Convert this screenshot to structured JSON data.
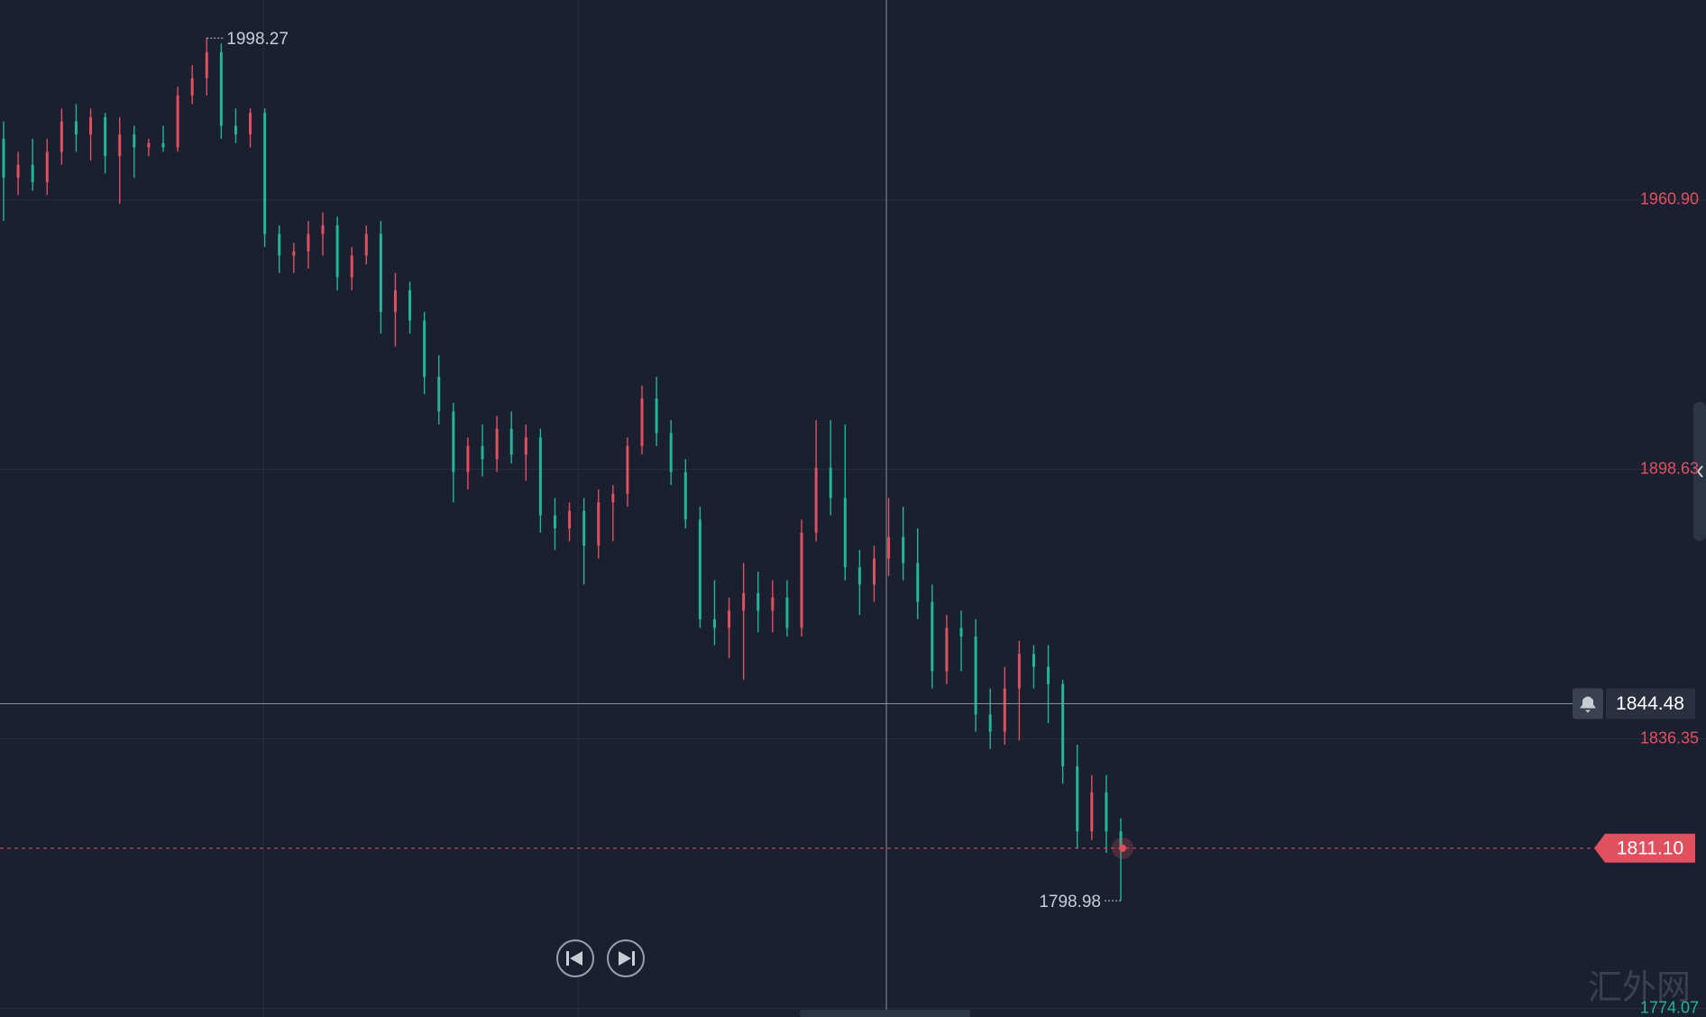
{
  "chart_data": {
    "type": "candlestick",
    "up_color": "#e0505f",
    "down_color": "#22b59a",
    "grid": true,
    "ylim": [
      1772.1,
      2007.06
    ],
    "yticks": [
      {
        "value": 1960.9,
        "label": "1960.90"
      },
      {
        "value": 1898.63,
        "label": "1898.63"
      },
      {
        "value": 1836.35,
        "label": "1836.35"
      },
      {
        "value": 1774.07,
        "label": "1774.07"
      }
    ],
    "open": [
      1975,
      1966,
      1969,
      1965,
      1972,
      1979,
      1976,
      1980,
      1971,
      1976,
      1973,
      1974,
      1973,
      1985,
      1989,
      1995,
      1978,
      1976,
      1981,
      1953,
      1948,
      1949,
      1953,
      1955,
      1943,
      1948,
      1953,
      1935,
      1940,
      1933,
      1920,
      1912,
      1898,
      1904,
      1901,
      1908,
      1902,
      1906,
      1888,
      1885,
      1889,
      1881,
      1891,
      1893,
      1904,
      1915,
      1907,
      1898,
      1887,
      1864,
      1862,
      1866,
      1870,
      1866,
      1869,
      1862,
      1884,
      1899,
      1892,
      1876,
      1872,
      1878,
      1883,
      1877,
      1868,
      1852,
      1862,
      1860,
      1842,
      1838,
      1848,
      1856,
      1853,
      1849,
      1830,
      1815,
      1824,
      1815
    ],
    "high": [
      1979,
      1972,
      1975,
      1975,
      1982,
      1983,
      1982,
      1981,
      1980,
      1978,
      1975,
      1978,
      1987,
      1992,
      1998.27,
      1997,
      1982,
      1982,
      1982,
      1955,
      1951,
      1956,
      1958,
      1957,
      1950,
      1955,
      1956,
      1944,
      1942,
      1935,
      1925,
      1914,
      1906,
      1909,
      1911,
      1912,
      1909,
      1908,
      1892,
      1891,
      1892,
      1894,
      1895,
      1906,
      1918,
      1920,
      1910,
      1901,
      1890,
      1873,
      1869,
      1877,
      1875,
      1873,
      1873,
      1887,
      1910,
      1910,
      1909,
      1880,
      1881,
      1892,
      1890,
      1885,
      1872,
      1865,
      1866,
      1864,
      1848,
      1853,
      1859,
      1858,
      1858,
      1850,
      1835,
      1828,
      1828,
      1818
    ],
    "low": [
      1956,
      1962,
      1963,
      1962,
      1969,
      1972,
      1970,
      1967,
      1960,
      1966,
      1971,
      1972,
      1972,
      1983,
      1985,
      1975,
      1974,
      1973,
      1950,
      1944,
      1944,
      1945,
      1948,
      1940,
      1940,
      1946,
      1930,
      1927,
      1930,
      1916,
      1909,
      1891,
      1894,
      1897,
      1898,
      1900,
      1896,
      1884,
      1880,
      1882,
      1872,
      1878,
      1882,
      1890,
      1902,
      1904,
      1895,
      1885,
      1862,
      1858,
      1855,
      1850,
      1861,
      1861,
      1860,
      1860,
      1882,
      1888,
      1873,
      1865,
      1868,
      1874,
      1873,
      1864,
      1848,
      1849,
      1852,
      1838,
      1834,
      1835,
      1836,
      1848,
      1840,
      1826,
      1811,
      1813,
      1810,
      1798.98
    ],
    "close": [
      1966,
      1969,
      1965,
      1972,
      1979,
      1976,
      1980,
      1971,
      1976,
      1973,
      1974,
      1973,
      1985,
      1989,
      1995,
      1978,
      1976,
      1981,
      1953,
      1948,
      1949,
      1953,
      1955,
      1943,
      1948,
      1953,
      1935,
      1940,
      1933,
      1920,
      1912,
      1898,
      1904,
      1901,
      1908,
      1902,
      1906,
      1888,
      1885,
      1889,
      1881,
      1891,
      1893,
      1904,
      1915,
      1907,
      1898,
      1887,
      1864,
      1862,
      1866,
      1870,
      1866,
      1869,
      1862,
      1884,
      1899,
      1892,
      1876,
      1872,
      1878,
      1883,
      1877,
      1868,
      1852,
      1862,
      1860,
      1842,
      1838,
      1848,
      1856,
      1853,
      1849,
      1830,
      1815,
      1824,
      1815,
      1811.1
    ],
    "high_marker": 1998.27,
    "low_marker": 1798.98,
    "current_price": {
      "value": 1811.1,
      "label": "1811.10"
    },
    "crosshair_price": 1844.48,
    "watermark": "汇外网"
  }
}
